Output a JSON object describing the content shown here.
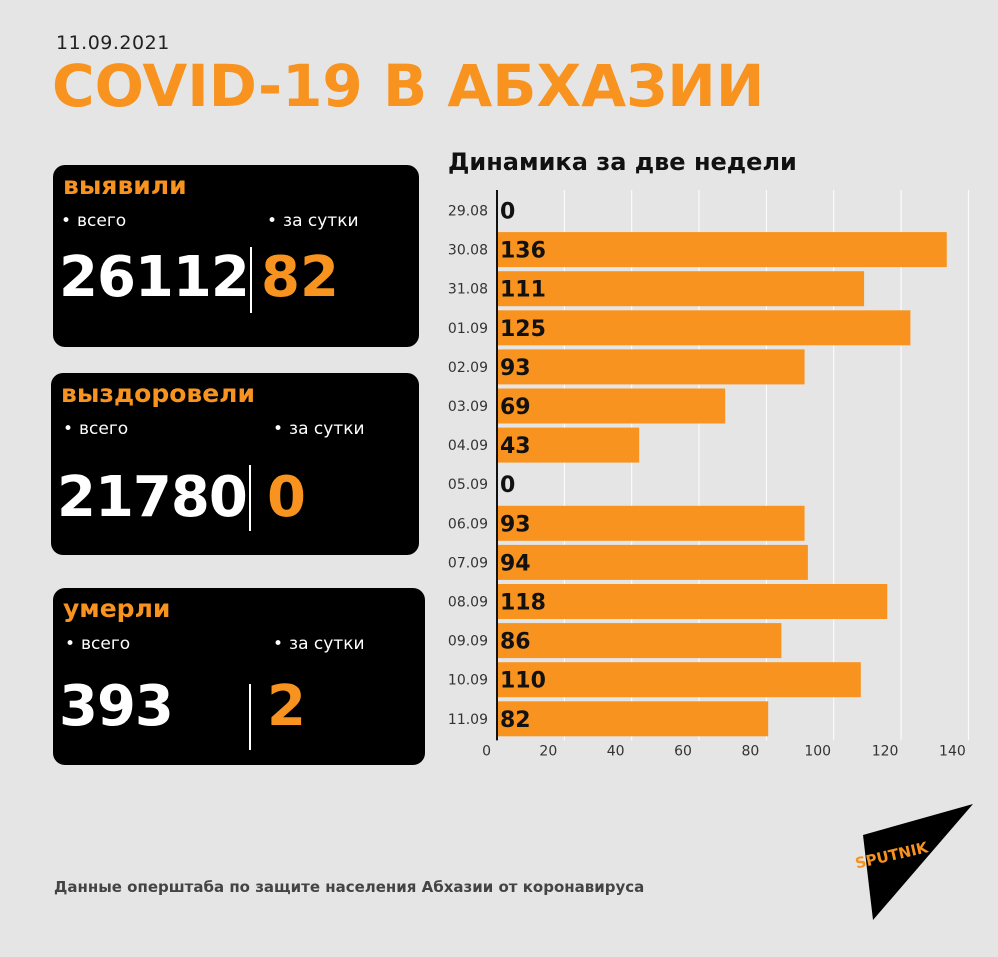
{
  "date": "11.09.2021",
  "title": "COVID-19 В АБХАЗИИ",
  "cards": [
    {
      "title": "выявили",
      "total_label": "всего",
      "day_label": "за сутки",
      "total": "26112",
      "day": "82"
    },
    {
      "title": "выздоровели",
      "total_label": "всего",
      "day_label": "за сутки",
      "total": "21780",
      "day": "0"
    },
    {
      "title": "умерли",
      "total_label": "всего",
      "day_label": "за сутки",
      "total": "393",
      "day": "2"
    }
  ],
  "chart_title": "Динамика за две недели",
  "source": "Данные оперштаба по защите населения Абхазии от коронавируса",
  "logo_text": "SPUTNIK",
  "colors": {
    "accent": "#f7931e",
    "background": "#e5e5e5",
    "card": "#000000"
  },
  "chart_data": {
    "type": "bar",
    "orientation": "horizontal",
    "categories": [
      "29.08",
      "30.08",
      "31.08",
      "01.09",
      "02.09",
      "03.09",
      "04.09",
      "05.09",
      "06.09",
      "07.09",
      "08.09",
      "09.09",
      "10.09",
      "11.09"
    ],
    "values": [
      0,
      136,
      111,
      125,
      93,
      69,
      43,
      0,
      93,
      94,
      118,
      86,
      110,
      82
    ],
    "x_ticks": [
      0,
      20,
      40,
      60,
      80,
      100,
      120,
      140
    ],
    "xlim": [
      0,
      140
    ],
    "grid": true,
    "title": "Динамика за две недели"
  }
}
